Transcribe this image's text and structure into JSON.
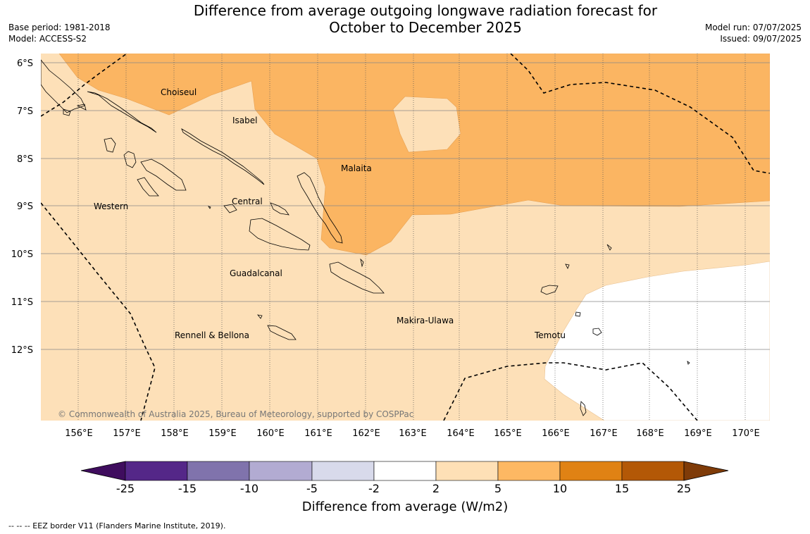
{
  "header": {
    "title_line1": "Difference from average outgoing longwave radiation forecast for",
    "title_line2": "October to December 2025",
    "base_period": "Base period: 1981-2018",
    "model": "Model: ACCESS-S2",
    "model_run": "Model run: 07/07/2025",
    "issued": "Issued: 09/07/2025"
  },
  "map": {
    "lat_labels": [
      "6°S",
      "7°S",
      "8°S",
      "9°S",
      "10°S",
      "11°S",
      "12°S"
    ],
    "lon_labels": [
      "156°E",
      "157°E",
      "158°E",
      "159°E",
      "160°E",
      "161°E",
      "162°E",
      "163°E",
      "164°E",
      "165°E",
      "166°E",
      "167°E",
      "168°E",
      "169°E",
      "170°E"
    ],
    "place_labels": {
      "choiseul": "Choiseul",
      "isabel": "Isabel",
      "malaita": "Malaita",
      "western": "Western",
      "central": "Central",
      "guadalcanal": "Guadalcanal",
      "makira": "Makira-Ulawa",
      "temotu": "Temotu",
      "rennell": "Rennell & Bellona"
    },
    "copyright": "© Commonwealth of Australia 2025, Bureau of Meteorology, supported by COSPPac",
    "colors": {
      "light_orange": "#fde0b8",
      "mid_orange": "#fbb562",
      "white": "#ffffff"
    }
  },
  "colorbar": {
    "title": "Difference from average (W/m2)",
    "ticks": [
      "-25",
      "-15",
      "-10",
      "-5",
      "-2",
      "2",
      "5",
      "10",
      "15",
      "25"
    ],
    "colors": [
      "#3f0d5e",
      "#542788",
      "#8073ac",
      "#b2abd2",
      "#d8daeb",
      "#ffffff",
      "#fee0b6",
      "#fdb863",
      "#e08214",
      "#b35806",
      "#7f3b08"
    ]
  },
  "footnote": "--  --  -- EEZ border V11 (Flanders Marine Institute, 2019)."
}
